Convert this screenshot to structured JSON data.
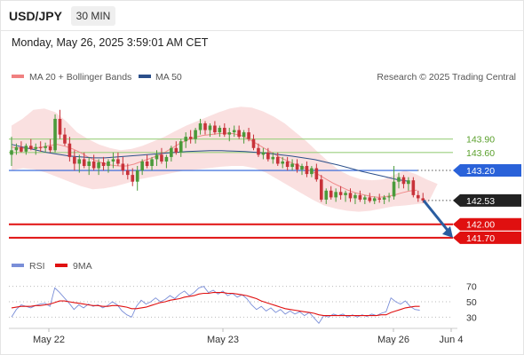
{
  "header": {
    "symbol": "USD/JPY",
    "timeframe": "30 MIN",
    "datetime": "Monday, May 26, 2025 3:59:01 AM CET"
  },
  "chart_data": [
    {
      "type": "candlestick",
      "legend": [
        {
          "name": "MA 20 + Bollinger Bands",
          "color": "#f08080"
        },
        {
          "name": "MA 50",
          "color": "#2b4f8a"
        }
      ],
      "credit": "Research © 2025 Trading Central",
      "x_tick_labels": [
        "May 22",
        "May 23",
        "May 26",
        "Jun 4"
      ],
      "levels": [
        {
          "value": 143.9,
          "label": "143.90",
          "kind": "target",
          "color": "#9bcf7f"
        },
        {
          "value": 143.6,
          "label": "143.60",
          "kind": "target",
          "color": "#9bcf7f"
        },
        {
          "value": 143.2,
          "label": "143.20",
          "kind": "pivot",
          "color": "#2a62d9"
        },
        {
          "value": 142.53,
          "label": "142.53",
          "kind": "last",
          "color": "#222222"
        },
        {
          "value": 142.0,
          "label": "142.00",
          "kind": "support",
          "color": "#e01010"
        },
        {
          "value": 141.7,
          "label": "141.70",
          "kind": "support",
          "color": "#e01010"
        }
      ],
      "projection": {
        "from": 142.53,
        "to": 141.7,
        "direction": "down",
        "color": "#2a5da0"
      },
      "ylim": [
        141.5,
        145.1
      ],
      "candle_colors": {
        "up": "#4a9a3a",
        "down": "#c8323a"
      },
      "candles": [
        [
          143.55,
          143.95,
          143.3,
          143.65
        ],
        [
          143.65,
          143.8,
          143.55,
          143.72
        ],
        [
          143.72,
          143.85,
          143.6,
          143.62
        ],
        [
          143.62,
          143.8,
          143.55,
          143.75
        ],
        [
          143.75,
          143.9,
          143.65,
          143.68
        ],
        [
          143.68,
          143.8,
          143.55,
          143.72
        ],
        [
          143.72,
          143.85,
          143.62,
          143.7
        ],
        [
          143.7,
          143.82,
          143.6,
          143.74
        ],
        [
          143.74,
          143.9,
          143.6,
          143.65
        ],
        [
          143.65,
          144.45,
          143.6,
          144.35
        ],
        [
          144.35,
          144.55,
          143.9,
          144.0
        ],
        [
          144.0,
          144.15,
          143.75,
          143.8
        ],
        [
          143.8,
          143.95,
          143.4,
          143.5
        ],
        [
          143.5,
          143.65,
          143.2,
          143.35
        ],
        [
          143.35,
          143.55,
          143.15,
          143.45
        ],
        [
          143.45,
          143.6,
          143.25,
          143.3
        ],
        [
          143.3,
          143.5,
          143.1,
          143.4
        ],
        [
          143.4,
          143.55,
          143.2,
          143.25
        ],
        [
          143.25,
          143.45,
          143.1,
          143.38
        ],
        [
          143.38,
          143.5,
          143.2,
          143.3
        ],
        [
          143.3,
          143.45,
          143.15,
          143.4
        ],
        [
          143.4,
          143.6,
          143.25,
          143.45
        ],
        [
          143.45,
          143.6,
          143.3,
          143.35
        ],
        [
          143.35,
          143.5,
          143.1,
          143.2
        ],
        [
          143.2,
          143.35,
          143.0,
          143.1
        ],
        [
          143.1,
          143.25,
          142.85,
          142.95
        ],
        [
          142.95,
          143.3,
          142.75,
          143.2
        ],
        [
          143.2,
          143.45,
          143.1,
          143.4
        ],
        [
          143.4,
          143.55,
          143.25,
          143.3
        ],
        [
          143.3,
          143.5,
          143.2,
          143.45
        ],
        [
          143.45,
          143.65,
          143.3,
          143.55
        ],
        [
          143.55,
          143.7,
          143.35,
          143.4
        ],
        [
          143.4,
          143.55,
          143.25,
          143.5
        ],
        [
          143.5,
          143.75,
          143.4,
          143.7
        ],
        [
          143.7,
          143.85,
          143.55,
          143.6
        ],
        [
          143.6,
          143.9,
          143.5,
          143.85
        ],
        [
          143.85,
          144.05,
          143.7,
          143.95
        ],
        [
          143.95,
          144.1,
          143.8,
          143.9
        ],
        [
          143.9,
          144.15,
          143.8,
          144.1
        ],
        [
          144.1,
          144.35,
          144.0,
          144.25
        ],
        [
          144.25,
          144.3,
          144.0,
          144.1
        ],
        [
          144.1,
          144.25,
          143.95,
          144.2
        ],
        [
          144.2,
          144.3,
          144.0,
          144.05
        ],
        [
          144.05,
          144.2,
          143.95,
          144.15
        ],
        [
          144.15,
          144.25,
          143.95,
          144.0
        ],
        [
          144.0,
          144.15,
          143.85,
          144.05
        ],
        [
          144.05,
          144.2,
          143.95,
          144.1
        ],
        [
          144.1,
          144.2,
          143.9,
          143.95
        ],
        [
          143.95,
          144.1,
          143.8,
          144.05
        ],
        [
          144.05,
          144.15,
          143.85,
          143.9
        ],
        [
          143.9,
          144.0,
          143.65,
          143.7
        ],
        [
          143.7,
          143.8,
          143.5,
          143.55
        ],
        [
          143.55,
          143.7,
          143.45,
          143.6
        ],
        [
          143.6,
          143.7,
          143.4,
          143.45
        ],
        [
          143.45,
          143.6,
          143.35,
          143.5
        ],
        [
          143.5,
          143.6,
          143.3,
          143.35
        ],
        [
          143.35,
          143.5,
          143.25,
          143.4
        ],
        [
          143.4,
          143.5,
          143.2,
          143.28
        ],
        [
          143.28,
          143.45,
          143.2,
          143.35
        ],
        [
          143.35,
          143.45,
          143.15,
          143.22
        ],
        [
          143.22,
          143.35,
          143.1,
          143.3
        ],
        [
          143.3,
          143.4,
          143.05,
          143.12
        ],
        [
          143.12,
          143.3,
          143.05,
          143.25
        ],
        [
          143.25,
          143.35,
          142.95,
          143.0
        ],
        [
          143.0,
          143.1,
          142.5,
          142.55
        ],
        [
          142.55,
          142.8,
          142.45,
          142.75
        ],
        [
          142.75,
          142.85,
          142.55,
          142.6
        ],
        [
          142.6,
          142.8,
          142.5,
          142.72
        ],
        [
          142.72,
          142.85,
          142.55,
          142.65
        ],
        [
          142.65,
          142.75,
          142.5,
          142.7
        ],
        [
          142.7,
          142.8,
          142.5,
          142.58
        ],
        [
          142.58,
          142.7,
          142.45,
          142.65
        ],
        [
          142.65,
          142.75,
          142.5,
          142.55
        ],
        [
          142.55,
          142.65,
          142.45,
          142.6
        ],
        [
          142.6,
          142.7,
          142.48,
          142.52
        ],
        [
          142.52,
          142.62,
          142.45,
          142.58
        ],
        [
          142.58,
          142.68,
          142.48,
          142.55
        ],
        [
          142.55,
          142.65,
          142.45,
          142.6
        ],
        [
          142.6,
          142.7,
          142.5,
          142.62
        ],
        [
          142.62,
          143.3,
          142.55,
          142.95
        ],
        [
          142.95,
          143.15,
          142.8,
          143.05
        ],
        [
          143.05,
          143.1,
          142.8,
          142.9
        ],
        [
          142.9,
          143.05,
          142.75,
          142.98
        ],
        [
          142.98,
          143.05,
          142.6,
          142.65
        ],
        [
          142.65,
          142.75,
          142.5,
          142.58
        ],
        [
          142.58,
          142.7,
          142.48,
          142.53
        ]
      ],
      "ma20": [
        143.72,
        143.7,
        143.69,
        143.7,
        143.72,
        143.76,
        143.78,
        143.74,
        143.68,
        143.6,
        143.5,
        143.42,
        143.36,
        143.32,
        143.3,
        143.3,
        143.34,
        143.4,
        143.46,
        143.52,
        143.6,
        143.7,
        143.8,
        143.88,
        143.94,
        143.98,
        144.0,
        144.02,
        144.03,
        144.02,
        143.98,
        143.9,
        143.8,
        143.7,
        143.6,
        143.5,
        143.42,
        143.34,
        143.28,
        143.2,
        143.12,
        143.02,
        142.92,
        142.84,
        142.76,
        142.7,
        142.66,
        142.62,
        142.6,
        142.62,
        142.65,
        142.7,
        142.74,
        142.76
      ],
      "ma50": [
        143.78,
        143.72,
        143.66,
        143.6,
        143.56,
        143.52,
        143.5,
        143.48,
        143.48,
        143.5,
        143.52,
        143.54,
        143.56,
        143.58,
        143.6,
        143.62,
        143.63,
        143.64,
        143.64,
        143.63,
        143.62,
        143.6,
        143.58,
        143.55,
        143.52,
        143.48,
        143.44,
        143.38,
        143.32,
        143.25,
        143.18,
        143.12,
        143.06,
        143.0,
        142.96
      ],
      "bb_upper": [
        144.2,
        144.35,
        144.55,
        144.58,
        144.5,
        144.3,
        144.05,
        143.9,
        143.78,
        143.7,
        143.65,
        143.68,
        143.75,
        143.85,
        143.95,
        144.08,
        144.2,
        144.3,
        144.4,
        144.5,
        144.58,
        144.62,
        144.6,
        144.52,
        144.4,
        144.25,
        144.05,
        143.85,
        143.62,
        143.4,
        143.2,
        143.08,
        143.0,
        142.98,
        143.0,
        143.1,
        143.2,
        143.12,
        143.0,
        142.9
      ],
      "bb_lower": [
        143.2,
        143.25,
        143.22,
        143.15,
        143.05,
        142.95,
        142.85,
        142.78,
        142.8,
        142.85,
        142.92,
        143.0,
        143.05,
        143.1,
        143.15,
        143.2,
        143.22,
        143.25,
        143.28,
        143.3,
        143.3,
        143.25,
        143.15,
        143.0,
        142.85,
        142.7,
        142.55,
        142.42,
        142.35,
        142.3,
        142.28,
        142.3,
        142.35,
        142.4,
        142.42,
        142.45,
        142.48
      ]
    },
    {
      "type": "line",
      "legend": [
        {
          "name": "RSI",
          "color": "#7a8ed8"
        },
        {
          "name": "9MA",
          "color": "#e01010"
        }
      ],
      "ylim": [
        20,
        80
      ],
      "y_tick_labels": [
        "70",
        "50",
        "30"
      ],
      "y_ticks": [
        70,
        50,
        30
      ],
      "series": [
        {
          "name": "RSI",
          "color": "#7a8ed8",
          "values": [
            30,
            40,
            46,
            44,
            42,
            45,
            47,
            48,
            44,
            68,
            62,
            55,
            48,
            40,
            46,
            42,
            47,
            44,
            46,
            42,
            45,
            50,
            46,
            38,
            33,
            30,
            44,
            52,
            47,
            50,
            55,
            50,
            53,
            58,
            54,
            60,
            64,
            58,
            62,
            68,
            70,
            62,
            65,
            60,
            64,
            58,
            61,
            56,
            59,
            54,
            46,
            40,
            44,
            38,
            42,
            36,
            40,
            34,
            38,
            34,
            37,
            32,
            36,
            29,
            22,
            32,
            30,
            34,
            32,
            34,
            30,
            33,
            30,
            33,
            31,
            34,
            32,
            35,
            37,
            55,
            50,
            47,
            51,
            44,
            40,
            39
          ]
        },
        {
          "name": "9MA",
          "color": "#e01010",
          "values": [
            42,
            43,
            44,
            44,
            44,
            45,
            45,
            46,
            47,
            49,
            51,
            51,
            50,
            49,
            48,
            47,
            46,
            45,
            45,
            44,
            44,
            45,
            45,
            44,
            43,
            41,
            41,
            42,
            43,
            45,
            47,
            49,
            50,
            52,
            53,
            54,
            56,
            57,
            58,
            60,
            61,
            61,
            62,
            62,
            62,
            61,
            61,
            60,
            59,
            58,
            56,
            54,
            51,
            49,
            47,
            45,
            43,
            41,
            40,
            39,
            38,
            37,
            36,
            35,
            33,
            32,
            32,
            32,
            32,
            32,
            32,
            32,
            32,
            32,
            32,
            32,
            32,
            33,
            33,
            36,
            38,
            40,
            42,
            43,
            44,
            44
          ]
        }
      ]
    }
  ]
}
